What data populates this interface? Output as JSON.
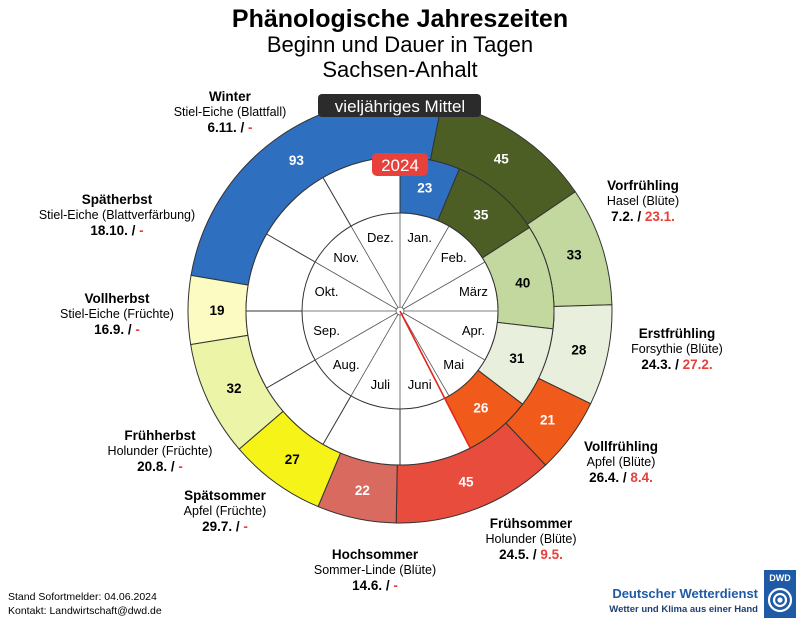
{
  "title": "Phänologische Jahreszeiten",
  "subtitle": "Beginn und Dauer in Tagen",
  "region": "Sachsen-Anhalt",
  "outer_ring_label": "vieljähriges Mittel",
  "inner_ring_label": "2024",
  "footer": {
    "line1": "Stand Sofortmelder: 04.06.2024",
    "line2": "Kontakt: Landwirtschaft@dwd.de"
  },
  "logo": {
    "name": "Deutscher Wetterdienst",
    "tagline": "Wetter und Klima aus einer Hand",
    "badge": "DWD"
  },
  "colors": {
    "winter": "#2f6fbf",
    "vorfruehling": "#4d5e25",
    "erstfruehling": "#c3d89e",
    "vollfruehling": "#e9efdd",
    "fruehsommer": "#f05a1a",
    "hochsommer": "#e84c3d",
    "spaetsommer": "#d86a60",
    "fruehherbst": "#f6f319",
    "vollherbst": "#ecf4a8",
    "spaetherbst": "#fbfbc2",
    "accent_red": "#e8403a"
  },
  "chart_data": {
    "type": "donut",
    "rings": [
      {
        "name": "vieljähriges Mittel",
        "segments": [
          {
            "season": "Winter",
            "days": 93,
            "color_key": "winter"
          },
          {
            "season": "Vorfrühling",
            "days": 45,
            "color_key": "vorfruehling"
          },
          {
            "season": "Erstfrühling",
            "days": 33,
            "color_key": "erstfruehling"
          },
          {
            "season": "Vollfrühling",
            "days": 28,
            "color_key": "vollfruehling"
          },
          {
            "season": "Frühsommer",
            "days": 21,
            "color_key": "fruehsommer"
          },
          {
            "season": "Hochsommer",
            "days": 45,
            "color_key": "hochsommer"
          },
          {
            "season": "Spätsommer",
            "days": 22,
            "color_key": "spaetsommer"
          },
          {
            "season": "Frühherbst",
            "days": 27,
            "color_key": "fruehherbst"
          },
          {
            "season": "Vollherbst",
            "days": 32,
            "color_key": "vollherbst"
          },
          {
            "season": "Spätherbst",
            "days": 19,
            "color_key": "spaetherbst"
          }
        ]
      },
      {
        "name": "2024",
        "segments": [
          {
            "season": "Winter",
            "days": 23,
            "color_key": "winter"
          },
          {
            "season": "Vorfrühling",
            "days": 35,
            "color_key": "vorfruehling"
          },
          {
            "season": "Erstfrühling",
            "days": 40,
            "color_key": "erstfruehling"
          },
          {
            "season": "Vollfrühling",
            "days": 31,
            "color_key": "vollfruehling"
          },
          {
            "season": "Frühsommer",
            "days": 26,
            "color_key": "fruehsommer"
          }
        ]
      }
    ],
    "months": [
      "Jan.",
      "Feb.",
      "März",
      "Apr.",
      "Mai",
      "Juni",
      "Juli",
      "Aug.",
      "Sep.",
      "Okt.",
      "Nov.",
      "Dez."
    ],
    "phases": [
      {
        "name": "Winter",
        "plant": "Stiel-Eiche (Blattfall)",
        "mean_start": "6.11.",
        "current_start": "-"
      },
      {
        "name": "Vorfrühling",
        "plant": "Hasel (Blüte)",
        "mean_start": "7.2.",
        "current_start": "23.1."
      },
      {
        "name": "Erstfrühling",
        "plant": "Forsythie (Blüte)",
        "mean_start": "24.3.",
        "current_start": "27.2."
      },
      {
        "name": "Vollfrühling",
        "plant": "Apfel (Blüte)",
        "mean_start": "26.4.",
        "current_start": "8.4."
      },
      {
        "name": "Frühsommer",
        "plant": "Holunder (Blüte)",
        "mean_start": "24.5.",
        "current_start": "9.5."
      },
      {
        "name": "Hochsommer",
        "plant": "Sommer-Linde (Blüte)",
        "mean_start": "14.6.",
        "current_start": "-"
      },
      {
        "name": "Spätsommer",
        "plant": "Apfel (Früchte)",
        "mean_start": "29.7.",
        "current_start": "-"
      },
      {
        "name": "Frühherbst",
        "plant": "Holunder (Früchte)",
        "mean_start": "20.8.",
        "current_start": "-"
      },
      {
        "name": "Vollherbst",
        "plant": "Stiel-Eiche (Früchte)",
        "mean_start": "16.9.",
        "current_start": "-"
      },
      {
        "name": "Spätherbst",
        "plant": "Stiel-Eiche (Blattverfärbung)",
        "mean_start": "18.10.",
        "current_start": "-"
      }
    ],
    "current_date": "04.06.2024"
  }
}
